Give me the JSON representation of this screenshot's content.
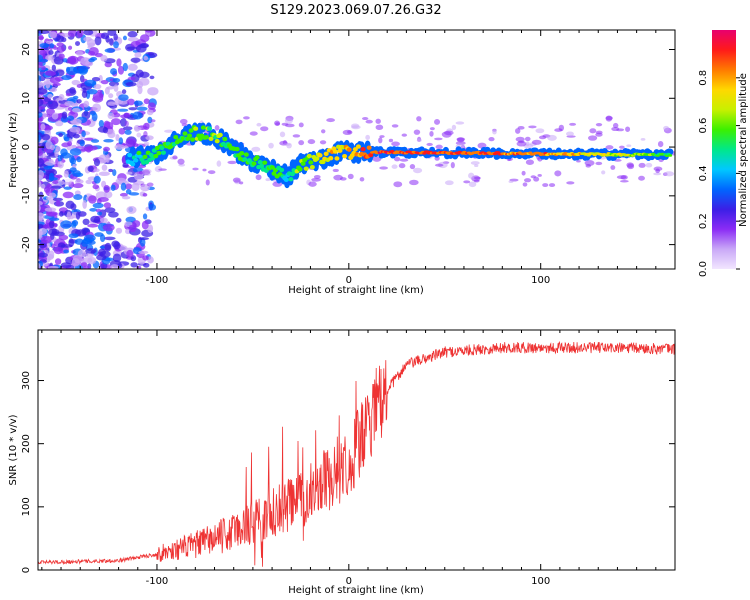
{
  "figure_title": "S129.2023.069.07.26.G32",
  "chart_data": [
    {
      "id": "spectrogram",
      "type": "heatmap",
      "xlabel": "Height of straight line (km)",
      "ylabel": "Frequency (Hz)",
      "xlim": [
        -162,
        170
      ],
      "ylim": [
        -25,
        24
      ],
      "xticks": [
        -100,
        0,
        100
      ],
      "yticks": [
        -20,
        -10,
        0,
        10,
        20
      ],
      "colorbar": {
        "label": "Normalized spectral amplitude",
        "range": [
          0,
          1
        ],
        "ticks": [
          0.0,
          0.2,
          0.4,
          0.6,
          0.8
        ],
        "colors": [
          "#f2e6ff",
          "#c9a8f7",
          "#8b2cf5",
          "#3b1fe6",
          "#0066ff",
          "#00c8ff",
          "#00e88a",
          "#3cf000",
          "#c8f000",
          "#ffd800",
          "#ff7a00",
          "#ff1a1a",
          "#e8006e"
        ]
      },
      "signal_track": [
        {
          "x": -115,
          "f": -2.5,
          "a": 0.45
        },
        {
          "x": -100,
          "f": -1.5,
          "a": 0.55
        },
        {
          "x": -90,
          "f": 1.5,
          "a": 0.55
        },
        {
          "x": -80,
          "f": 3.0,
          "a": 0.6
        },
        {
          "x": -70,
          "f": 2.5,
          "a": 0.6
        },
        {
          "x": -60,
          "f": -0.5,
          "a": 0.55
        },
        {
          "x": -50,
          "f": -3.0,
          "a": 0.55
        },
        {
          "x": -40,
          "f": -4.5,
          "a": 0.5
        },
        {
          "x": -32,
          "f": -6.0,
          "a": 0.5
        },
        {
          "x": -25,
          "f": -3.5,
          "a": 0.6
        },
        {
          "x": -15,
          "f": -2.5,
          "a": 0.7
        },
        {
          "x": -5,
          "f": -1.0,
          "a": 0.75
        },
        {
          "x": 5,
          "f": -1.0,
          "a": 0.8
        },
        {
          "x": 12,
          "f": -1.0,
          "a": 0.9
        },
        {
          "x": 60,
          "f": -1.2,
          "a": 0.88
        },
        {
          "x": 100,
          "f": -1.4,
          "a": 0.82
        },
        {
          "x": 130,
          "f": -1.5,
          "a": 0.72
        },
        {
          "x": 168,
          "f": -1.6,
          "a": 0.55
        }
      ]
    },
    {
      "id": "snr",
      "type": "line",
      "xlabel": "Height of straight line (km)",
      "ylabel": "SNR (10 * v/v)",
      "xlim": [
        -162,
        170
      ],
      "ylim": [
        0,
        380
      ],
      "xticks": [
        -100,
        0,
        100
      ],
      "yticks": [
        0,
        100,
        200,
        300
      ],
      "color": "#ee3333",
      "trend": {
        "x": [
          -162,
          -120,
          -100,
          -80,
          -60,
          -40,
          -20,
          0,
          10,
          20,
          30,
          50,
          80,
          100,
          130,
          170
        ],
        "y": [
          12,
          15,
          25,
          40,
          60,
          90,
          120,
          175,
          220,
          285,
          325,
          345,
          352,
          352,
          352,
          350
        ]
      }
    }
  ]
}
